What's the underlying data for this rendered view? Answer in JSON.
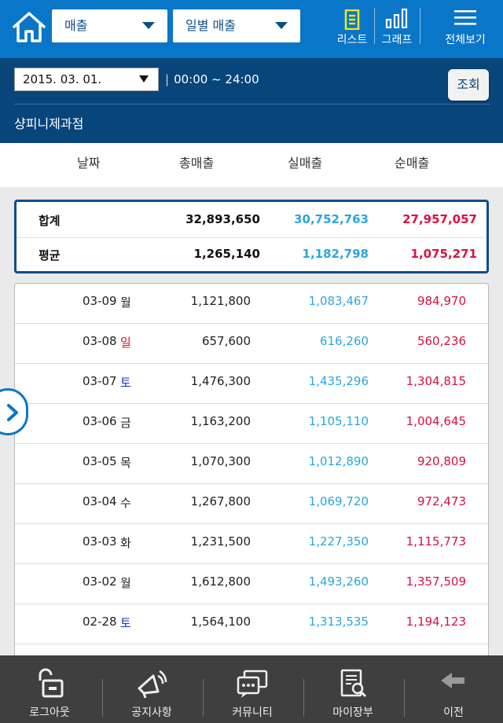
{
  "header": {
    "category_select": "매출",
    "period_select": "일별 매출",
    "list_label": "리스트",
    "graph_label": "그래프",
    "menu_label": "전체보기"
  },
  "filter": {
    "date": "2015. 03. 01.",
    "time_range": "00:00 ~ 24:00",
    "query_label": "조회",
    "shop_name": "샹피니제과점"
  },
  "columns": [
    "날짜",
    "총매출",
    "실매출",
    "순매출"
  ],
  "summary": [
    {
      "label": "합계",
      "total": "32,893,650",
      "real": "30,752,763",
      "net": "27,957,057"
    },
    {
      "label": "평균",
      "total": "1,265,140",
      "real": "1,182,798",
      "net": "1,075,271"
    }
  ],
  "rows": [
    {
      "date": "03-09",
      "weekday": "월",
      "total": "1,121,800",
      "real": "1,083,467",
      "net": "984,970"
    },
    {
      "date": "03-08",
      "weekday": "일",
      "total": "657,600",
      "real": "616,260",
      "net": "560,236"
    },
    {
      "date": "03-07",
      "weekday": "토",
      "total": "1,476,300",
      "real": "1,435,296",
      "net": "1,304,815"
    },
    {
      "date": "03-06",
      "weekday": "금",
      "total": "1,163,200",
      "real": "1,105,110",
      "net": "1,004,645"
    },
    {
      "date": "03-05",
      "weekday": "목",
      "total": "1,070,300",
      "real": "1,012,890",
      "net": "920,809"
    },
    {
      "date": "03-04",
      "weekday": "수",
      "total": "1,267,800",
      "real": "1,069,720",
      "net": "972,473"
    },
    {
      "date": "03-03",
      "weekday": "화",
      "total": "1,231,500",
      "real": "1,227,350",
      "net": "1,115,773"
    },
    {
      "date": "03-02",
      "weekday": "월",
      "total": "1,612,800",
      "real": "1,493,260",
      "net": "1,357,509"
    },
    {
      "date": "02-28",
      "weekday": "토",
      "total": "1,564,100",
      "real": "1,313,535",
      "net": "1,194,123"
    }
  ],
  "bottom_nav": {
    "logout": "로그아웃",
    "notice": "공지사항",
    "community": "커뮤니티",
    "my_ledger": "마이장부",
    "back": "이전"
  },
  "colors": {
    "topbar": "#0a76c8",
    "datebar": "#08457a",
    "real_sales": "#2aa6e0",
    "net_sales": "#e01040",
    "sunday": "#e0102a",
    "saturday": "#1a33b8"
  }
}
